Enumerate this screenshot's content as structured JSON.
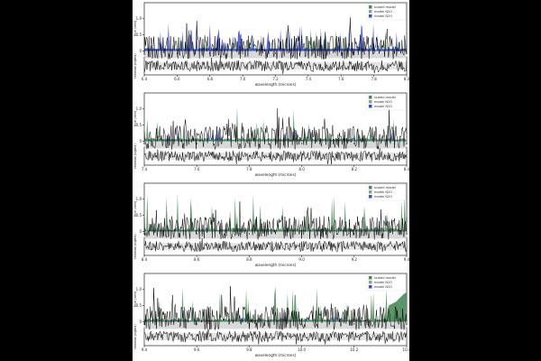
{
  "page": {
    "background": "#000000",
    "figure_background": "#ffffff"
  },
  "colors": {
    "scaled_model": "#4b8a5a",
    "model_n2_1": "#9a9a9a",
    "model_n2_2": "#3b4fd0",
    "data": "#000000",
    "band": "#d9d9d9"
  },
  "legend": {
    "entries": [
      "scaled model",
      "model N2O",
      "model N2O"
    ],
    "placement": "top-right"
  },
  "chart_data": [
    {
      "type": "line",
      "panel": "1",
      "xlabel": "wavelength (microns)",
      "ylabel": "flux (arb)",
      "residual_ylabel": "residual (sigma)",
      "xlim": [
        6.4,
        8.0
      ],
      "xticks": [
        "6.4",
        "6.6",
        "6.8",
        "7.0",
        "7.2",
        "7.4",
        "7.6",
        "7.8",
        "8.0"
      ],
      "ylim": [
        -0.1,
        1.5
      ],
      "yticks": [
        "0",
        "0.5",
        "1.0"
      ],
      "residual_ylim": [
        -3,
        3
      ],
      "dominant_series": "model N2O",
      "series": [
        {
          "name": "scaled model",
          "color": "#4b8a5a"
        },
        {
          "name": "model N2O",
          "color": "#9a9a9a"
        },
        {
          "name": "model N2O",
          "color": "#3b4fd0"
        }
      ]
    },
    {
      "type": "line",
      "panel": "2",
      "xlabel": "wavelength (microns)",
      "ylabel": "flux (arb)",
      "residual_ylabel": "residual (sigma)",
      "xlim": [
        7.4,
        8.4
      ],
      "xticks": [
        "7.4",
        "7.6",
        "7.8",
        "8.0",
        "8.2",
        "8.4"
      ],
      "ylim": [
        -0.1,
        1.5
      ],
      "yticks": [
        "0",
        "0.5",
        "1.0"
      ],
      "residual_ylim": [
        -3,
        3
      ],
      "dominant_series": "mixed",
      "series": [
        {
          "name": "scaled model",
          "color": "#4b8a5a"
        },
        {
          "name": "model N2O",
          "color": "#9a9a9a"
        },
        {
          "name": "model N2O",
          "color": "#3b4fd0"
        }
      ]
    },
    {
      "type": "line",
      "panel": "3",
      "xlabel": "wavelength (microns)",
      "ylabel": "flux (arb)",
      "residual_ylabel": "residual (sigma)",
      "xlim": [
        8.4,
        9.4
      ],
      "xticks": [
        "8.4",
        "8.6",
        "8.8",
        "9.0",
        "9.2",
        "9.4"
      ],
      "ylim": [
        -0.1,
        1.5
      ],
      "yticks": [
        "0",
        "0.5",
        "1.0"
      ],
      "residual_ylim": [
        -3,
        3
      ],
      "dominant_series": "scaled model",
      "series": [
        {
          "name": "scaled model",
          "color": "#4b8a5a"
        },
        {
          "name": "model N2O",
          "color": "#9a9a9a"
        },
        {
          "name": "model N2O",
          "color": "#3b4fd0"
        }
      ]
    },
    {
      "type": "line",
      "panel": "4",
      "xlabel": "wavelength (microns)",
      "ylabel": "flux (arb)",
      "residual_ylabel": "residual (sigma)",
      "xlim": [
        9.4,
        10.4
      ],
      "xticks": [
        "9.4",
        "9.6",
        "9.8",
        "10.0",
        "10.2",
        "10.4"
      ],
      "ylim": [
        -0.1,
        1.5
      ],
      "yticks": [
        "0",
        "0.5",
        "1.0"
      ],
      "residual_ylim": [
        -3,
        3
      ],
      "dominant_series": "scaled model",
      "series": [
        {
          "name": "scaled model",
          "color": "#4b8a5a"
        },
        {
          "name": "model N2O",
          "color": "#9a9a9a"
        },
        {
          "name": "model N2O",
          "color": "#3b4fd0"
        }
      ]
    }
  ]
}
